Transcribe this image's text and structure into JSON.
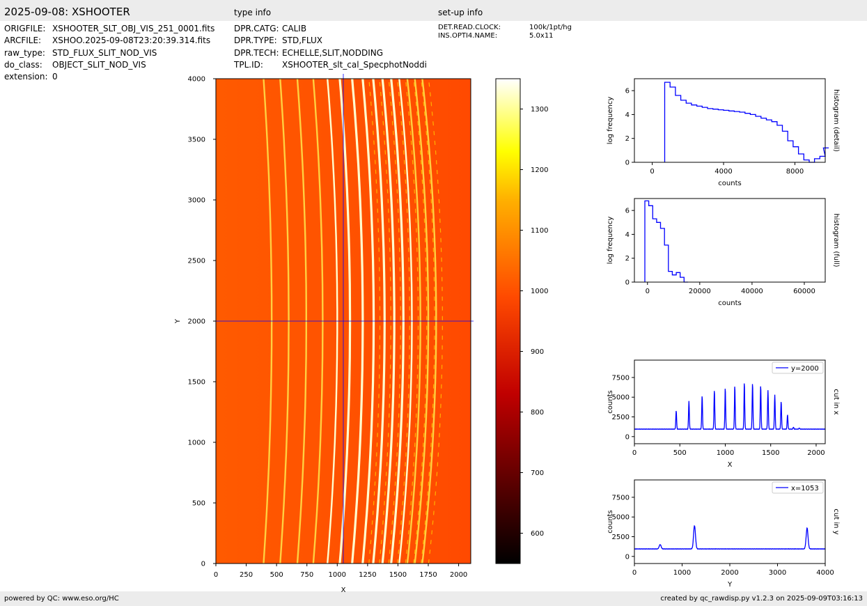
{
  "header": {
    "title": "2025-09-08: XSHOOTER",
    "type_info_title": "type info",
    "setup_info_title": "set-up info"
  },
  "file_info": [
    {
      "key": "ORIGFILE:",
      "value": "XSHOOTER_SLT_OBJ_VIS_251_0001.fits"
    },
    {
      "key": "ARCFILE:",
      "value": "XSHOO.2025-09-08T23:20:39.314.fits"
    },
    {
      "key": "raw_type:",
      "value": "STD_FLUX_SLIT_NOD_VIS"
    },
    {
      "key": "do_class:",
      "value": "OBJECT_SLIT_NOD_VIS"
    },
    {
      "key": "extension:",
      "value": "0"
    }
  ],
  "type_info": [
    {
      "key": "DPR.CATG:",
      "value": "CALIB"
    },
    {
      "key": "DPR.TYPE:",
      "value": "STD,FLUX"
    },
    {
      "key": "DPR.TECH:",
      "value": "ECHELLE,SLIT,NODDING"
    },
    {
      "key": "TPL.ID:",
      "value": "XSHOOTER_slt_cal_SpecphotNoddi"
    }
  ],
  "setup_info": [
    {
      "key": "DET.READ.CLOCK:",
      "value": "100k/1pt/hg"
    },
    {
      "key": "INS.OPTI4.NAME:",
      "value": "5.0x11"
    }
  ],
  "footer": {
    "left": "powered by QC: www.eso.org/HC",
    "right": "created by qc_rawdisp.py v1.2.3 on 2025-09-09T03:16:13"
  },
  "colors": {
    "series": "#0000ff",
    "image_bg": "#ff4d00",
    "header_bg": "#ececec"
  },
  "chart_data": [
    {
      "type": "heatmap",
      "xlabel": "X",
      "ylabel": "Y",
      "xlim": [
        0,
        2100
      ],
      "ylim": [
        0,
        4000
      ],
      "x_ticks": [
        "0",
        "250",
        "500",
        "750",
        "1000",
        "1250",
        "1500",
        "1750",
        "2000"
      ],
      "y_ticks": [
        "0",
        "500",
        "1000",
        "1500",
        "2000",
        "2500",
        "3000",
        "3500",
        "4000"
      ],
      "crosshair": {
        "x": 1053,
        "y": 2000
      },
      "colorbar": {
        "range": [
          550,
          1350
        ],
        "ticks": [
          "600",
          "700",
          "800",
          "900",
          "1000",
          "1100",
          "1200",
          "1300"
        ]
      },
      "order_traces_x_at_y2000": [
        460,
        600,
        745,
        880,
        1000,
        1105,
        1210,
        1300,
        1390,
        1470,
        1545,
        1615,
        1685,
        1750,
        1815
      ]
    },
    {
      "type": "line",
      "ylabel": "log frequency",
      "xlabel": "counts",
      "side_label": "histogram (detail)",
      "xlim": [
        -1000,
        9700
      ],
      "ylim": [
        0,
        7
      ],
      "x_ticks": [
        "0",
        "4000",
        "8000"
      ],
      "y_ticks": [
        "0",
        "2",
        "4",
        "6"
      ],
      "x": [
        700,
        1000,
        1300,
        1600,
        1900,
        2200,
        2500,
        2800,
        3100,
        3400,
        3700,
        4000,
        4300,
        4600,
        4900,
        5200,
        5500,
        5800,
        6100,
        6400,
        6700,
        7000,
        7300,
        7600,
        7900,
        8200,
        8500,
        8800,
        9100,
        9400,
        9600
      ],
      "y": [
        6.7,
        6.3,
        5.6,
        5.2,
        4.95,
        4.8,
        4.7,
        4.6,
        4.5,
        4.45,
        4.4,
        4.35,
        4.3,
        4.25,
        4.2,
        4.1,
        4.0,
        3.85,
        3.7,
        3.55,
        3.4,
        3.1,
        2.6,
        1.8,
        1.3,
        0.7,
        0.2,
        0.0,
        0.3,
        0.5,
        1.2
      ]
    },
    {
      "type": "line",
      "ylabel": "log frequency",
      "xlabel": "counts",
      "side_label": "histogram (full)",
      "xlim": [
        -5000,
        68000
      ],
      "ylim": [
        0,
        7
      ],
      "x_ticks": [
        "0",
        "20000",
        "40000",
        "60000"
      ],
      "y_ticks": [
        "0",
        "2",
        "4",
        "6"
      ],
      "x": [
        -1000,
        500,
        2000,
        3500,
        5000,
        6500,
        8000,
        9500,
        11000,
        12500,
        14000
      ],
      "y": [
        6.8,
        6.4,
        5.3,
        5.0,
        4.5,
        3.1,
        0.9,
        0.6,
        0.8,
        0.4,
        0.0
      ]
    },
    {
      "type": "line",
      "ylabel": "counts",
      "xlabel": "X",
      "side_label": "cut in x",
      "xlim": [
        0,
        2100
      ],
      "ylim": [
        -900,
        9700
      ],
      "x_ticks": [
        "0",
        "500",
        "1000",
        "1500",
        "2000"
      ],
      "y_ticks": [
        "0",
        "2500",
        "5000",
        "7500"
      ],
      "series": [
        {
          "name": "y=2000",
          "baseline": 950,
          "peaks_x": [
            460,
            600,
            745,
            880,
            1000,
            1105,
            1210,
            1300,
            1390,
            1470,
            1545,
            1615,
            1685,
            1750,
            1815
          ],
          "peaks_y": [
            3300,
            4500,
            5200,
            5900,
            6200,
            6500,
            6900,
            6800,
            6500,
            5900,
            5300,
            4500,
            2800,
            1200,
            1100
          ]
        }
      ]
    },
    {
      "type": "line",
      "ylabel": "counts",
      "xlabel": "Y",
      "side_label": "cut in y",
      "xlim": [
        0,
        4000
      ],
      "ylim": [
        -900,
        9700
      ],
      "x_ticks": [
        "0",
        "1000",
        "2000",
        "3000",
        "4000"
      ],
      "y_ticks": [
        "0",
        "2500",
        "5000",
        "7500"
      ],
      "series": [
        {
          "name": "x=1053",
          "baseline": 950,
          "peaks_x": [
            540,
            1260,
            3620
          ],
          "peaks_y": [
            1500,
            3900,
            3600
          ]
        }
      ]
    }
  ]
}
